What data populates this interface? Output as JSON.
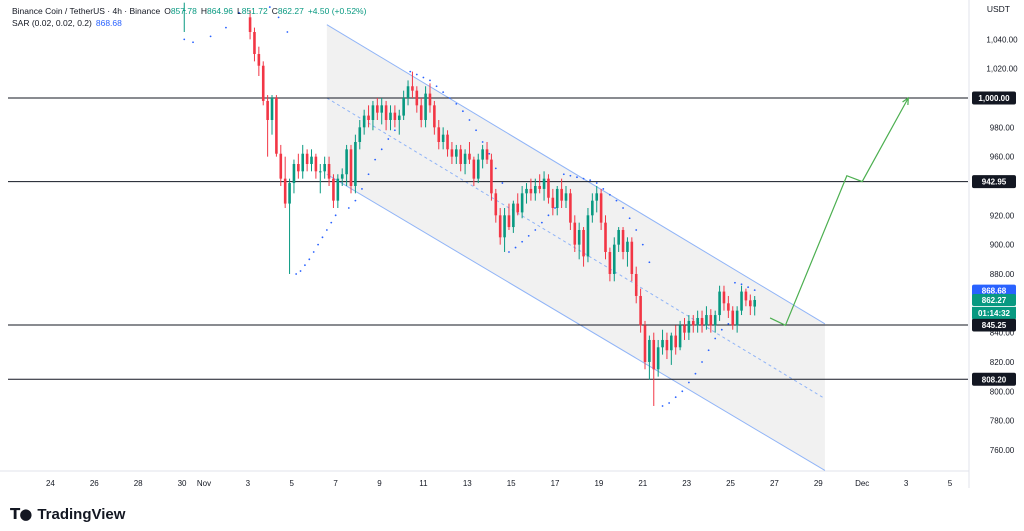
{
  "legend": {
    "symbol": "Binance Coin / TetherUS · 4h · Binance",
    "o_label": "O",
    "o_value": "857.78",
    "h_label": "H",
    "h_value": "864.96",
    "l_label": "L",
    "l_value": "851.72",
    "c_label": "C",
    "c_value": "862.27",
    "change": "+4.50 (+0.52%)",
    "sar_label": "SAR (0.02, 0.02, 0.2)",
    "sar_value": "868.68"
  },
  "currency": "USDT",
  "brand": "TradingView",
  "colors": {
    "up": "#089981",
    "down": "#f23645",
    "sar": "#2962ff",
    "channel_line": "#90b4f7",
    "channel_fill": "#f0f0f0",
    "projection": "#4caf50",
    "hline": "#131722"
  },
  "chart_data": {
    "type": "candlestick",
    "y_ticks": [
      "1,040.00",
      "1,020.00",
      "980.00",
      "960.00",
      "920.00",
      "900.00",
      "880.00",
      "840.00",
      "820.00",
      "800.00",
      "780.00",
      "760.00"
    ],
    "y_tick_values": [
      1040,
      1020,
      980,
      960,
      920,
      900,
      880,
      840,
      820,
      800,
      780,
      760
    ],
    "x_ticks": [
      "24",
      "26",
      "28",
      "30",
      "Nov",
      "3",
      "5",
      "7",
      "9",
      "11",
      "13",
      "15",
      "17",
      "19",
      "21",
      "23",
      "25",
      "27",
      "29",
      "Dec",
      "3",
      "5"
    ],
    "x_tick_days": [
      -7,
      -5,
      -3,
      -1,
      0,
      2,
      4,
      6,
      8,
      10,
      12,
      14,
      16,
      18,
      20,
      22,
      24,
      26,
      28,
      30,
      32,
      34
    ],
    "ylim": [
      745,
      1060
    ],
    "horizontal_levels": [
      {
        "label": "1,000.00",
        "value": 1000
      },
      {
        "label": "942.95",
        "value": 942.95
      },
      {
        "label": "845.25",
        "value": 845.25
      },
      {
        "label": "808.20",
        "value": 808.2
      }
    ],
    "price_badges": [
      {
        "label": "868.68",
        "value": 868.68,
        "kind": "sar"
      },
      {
        "label": "862.27",
        "value": 862.27,
        "kind": "last"
      },
      {
        "label": "01:14:32",
        "value": 853.5,
        "kind": "countdown"
      }
    ],
    "channel": {
      "upper": [
        [
          5.6,
          1050
        ],
        [
          28.3,
          846
        ]
      ],
      "middle": [
        [
          5.6,
          1000
        ],
        [
          28.3,
          795
        ]
      ],
      "lower": [
        [
          5.6,
          948
        ],
        [
          28.3,
          746
        ]
      ]
    },
    "projection": [
      [
        25.8,
        850
      ],
      [
        26.5,
        845
      ],
      [
        29.3,
        947
      ],
      [
        30.0,
        943
      ],
      [
        32.1,
        1000
      ]
    ],
    "candles": [
      {
        "d": -0.9,
        "o": 1060,
        "h": 1065,
        "l": 1045,
        "c": 1060
      },
      {
        "d": 2.1,
        "o": 1055,
        "h": 1060,
        "l": 1040,
        "c": 1045
      },
      {
        "d": 2.3,
        "o": 1045,
        "h": 1048,
        "l": 1025,
        "c": 1030
      },
      {
        "d": 2.5,
        "o": 1030,
        "h": 1035,
        "l": 1015,
        "c": 1022
      },
      {
        "d": 2.7,
        "o": 1022,
        "h": 1025,
        "l": 995,
        "c": 998
      },
      {
        "d": 2.9,
        "o": 998,
        "h": 1002,
        "l": 960,
        "c": 985
      },
      {
        "d": 3.1,
        "o": 985,
        "h": 1002,
        "l": 975,
        "c": 1000
      },
      {
        "d": 3.3,
        "o": 1000,
        "h": 1002,
        "l": 960,
        "c": 962
      },
      {
        "d": 3.5,
        "o": 962,
        "h": 968,
        "l": 940,
        "c": 945
      },
      {
        "d": 3.7,
        "o": 945,
        "h": 960,
        "l": 925,
        "c": 928
      },
      {
        "d": 3.9,
        "o": 928,
        "h": 945,
        "l": 880,
        "c": 942
      },
      {
        "d": 4.1,
        "o": 942,
        "h": 958,
        "l": 935,
        "c": 955
      },
      {
        "d": 4.3,
        "o": 955,
        "h": 962,
        "l": 945,
        "c": 950
      },
      {
        "d": 4.5,
        "o": 950,
        "h": 968,
        "l": 945,
        "c": 962
      },
      {
        "d": 4.7,
        "o": 962,
        "h": 965,
        "l": 950,
        "c": 955
      },
      {
        "d": 4.9,
        "o": 955,
        "h": 965,
        "l": 950,
        "c": 960
      },
      {
        "d": 5.1,
        "o": 960,
        "h": 962,
        "l": 945,
        "c": 950
      },
      {
        "d": 5.3,
        "o": 950,
        "h": 955,
        "l": 935,
        "c": 950
      },
      {
        "d": 5.5,
        "o": 950,
        "h": 960,
        "l": 945,
        "c": 955
      },
      {
        "d": 5.7,
        "o": 955,
        "h": 960,
        "l": 940,
        "c": 945
      },
      {
        "d": 5.9,
        "o": 945,
        "h": 948,
        "l": 925,
        "c": 930
      },
      {
        "d": 6.1,
        "o": 930,
        "h": 948,
        "l": 925,
        "c": 945
      },
      {
        "d": 6.3,
        "o": 945,
        "h": 952,
        "l": 940,
        "c": 948
      },
      {
        "d": 6.5,
        "o": 948,
        "h": 968,
        "l": 940,
        "c": 965
      },
      {
        "d": 6.7,
        "o": 965,
        "h": 968,
        "l": 935,
        "c": 940
      },
      {
        "d": 6.9,
        "o": 940,
        "h": 975,
        "l": 935,
        "c": 970
      },
      {
        "d": 7.1,
        "o": 970,
        "h": 985,
        "l": 965,
        "c": 980
      },
      {
        "d": 7.3,
        "o": 980,
        "h": 992,
        "l": 975,
        "c": 988
      },
      {
        "d": 7.5,
        "o": 988,
        "h": 995,
        "l": 980,
        "c": 985
      },
      {
        "d": 7.7,
        "o": 985,
        "h": 998,
        "l": 978,
        "c": 995
      },
      {
        "d": 7.9,
        "o": 995,
        "h": 1000,
        "l": 985,
        "c": 990
      },
      {
        "d": 8.1,
        "o": 990,
        "h": 1000,
        "l": 982,
        "c": 995
      },
      {
        "d": 8.3,
        "o": 995,
        "h": 998,
        "l": 978,
        "c": 985
      },
      {
        "d": 8.5,
        "o": 985,
        "h": 995,
        "l": 978,
        "c": 990
      },
      {
        "d": 8.7,
        "o": 990,
        "h": 995,
        "l": 980,
        "c": 985
      },
      {
        "d": 8.9,
        "o": 985,
        "h": 992,
        "l": 975,
        "c": 988
      },
      {
        "d": 9.1,
        "o": 988,
        "h": 1005,
        "l": 985,
        "c": 1000
      },
      {
        "d": 9.3,
        "o": 1000,
        "h": 1012,
        "l": 995,
        "c": 1008
      },
      {
        "d": 9.5,
        "o": 1008,
        "h": 1018,
        "l": 1000,
        "c": 1005
      },
      {
        "d": 9.7,
        "o": 1005,
        "h": 1008,
        "l": 990,
        "c": 995
      },
      {
        "d": 9.9,
        "o": 995,
        "h": 1000,
        "l": 980,
        "c": 985
      },
      {
        "d": 10.1,
        "o": 985,
        "h": 1008,
        "l": 980,
        "c": 1003
      },
      {
        "d": 10.3,
        "o": 1003,
        "h": 1010,
        "l": 990,
        "c": 995
      },
      {
        "d": 10.5,
        "o": 995,
        "h": 998,
        "l": 975,
        "c": 980
      },
      {
        "d": 10.7,
        "o": 980,
        "h": 985,
        "l": 965,
        "c": 970
      },
      {
        "d": 10.9,
        "o": 970,
        "h": 980,
        "l": 965,
        "c": 975
      },
      {
        "d": 11.1,
        "o": 975,
        "h": 978,
        "l": 960,
        "c": 965
      },
      {
        "d": 11.3,
        "o": 965,
        "h": 970,
        "l": 955,
        "c": 960
      },
      {
        "d": 11.5,
        "o": 960,
        "h": 968,
        "l": 955,
        "c": 965
      },
      {
        "d": 11.7,
        "o": 965,
        "h": 968,
        "l": 950,
        "c": 955
      },
      {
        "d": 11.9,
        "o": 955,
        "h": 965,
        "l": 948,
        "c": 962
      },
      {
        "d": 12.1,
        "o": 962,
        "h": 970,
        "l": 955,
        "c": 958
      },
      {
        "d": 12.3,
        "o": 958,
        "h": 960,
        "l": 940,
        "c": 945
      },
      {
        "d": 12.5,
        "o": 945,
        "h": 962,
        "l": 942,
        "c": 958
      },
      {
        "d": 12.7,
        "o": 958,
        "h": 968,
        "l": 952,
        "c": 965
      },
      {
        "d": 12.9,
        "o": 965,
        "h": 970,
        "l": 955,
        "c": 958
      },
      {
        "d": 13.1,
        "o": 958,
        "h": 962,
        "l": 930,
        "c": 935
      },
      {
        "d": 13.3,
        "o": 935,
        "h": 938,
        "l": 915,
        "c": 920
      },
      {
        "d": 13.5,
        "o": 920,
        "h": 925,
        "l": 900,
        "c": 905
      },
      {
        "d": 13.7,
        "o": 905,
        "h": 925,
        "l": 895,
        "c": 920
      },
      {
        "d": 13.9,
        "o": 920,
        "h": 928,
        "l": 910,
        "c": 912
      },
      {
        "d": 14.1,
        "o": 912,
        "h": 930,
        "l": 908,
        "c": 928
      },
      {
        "d": 14.3,
        "o": 928,
        "h": 935,
        "l": 920,
        "c": 922
      },
      {
        "d": 14.5,
        "o": 922,
        "h": 940,
        "l": 918,
        "c": 935
      },
      {
        "d": 14.7,
        "o": 935,
        "h": 942,
        "l": 928,
        "c": 938
      },
      {
        "d": 14.9,
        "o": 938,
        "h": 945,
        "l": 930,
        "c": 935
      },
      {
        "d": 15.1,
        "o": 935,
        "h": 945,
        "l": 930,
        "c": 940
      },
      {
        "d": 15.3,
        "o": 940,
        "h": 948,
        "l": 935,
        "c": 938
      },
      {
        "d": 15.5,
        "o": 938,
        "h": 950,
        "l": 930,
        "c": 945
      },
      {
        "d": 15.7,
        "o": 945,
        "h": 948,
        "l": 928,
        "c": 932
      },
      {
        "d": 15.9,
        "o": 932,
        "h": 938,
        "l": 920,
        "c": 925
      },
      {
        "d": 16.1,
        "o": 925,
        "h": 940,
        "l": 920,
        "c": 938
      },
      {
        "d": 16.3,
        "o": 938,
        "h": 945,
        "l": 925,
        "c": 930
      },
      {
        "d": 16.5,
        "o": 930,
        "h": 940,
        "l": 925,
        "c": 935
      },
      {
        "d": 16.7,
        "o": 935,
        "h": 938,
        "l": 910,
        "c": 915
      },
      {
        "d": 16.9,
        "o": 915,
        "h": 920,
        "l": 895,
        "c": 900
      },
      {
        "d": 17.1,
        "o": 900,
        "h": 915,
        "l": 890,
        "c": 910
      },
      {
        "d": 17.3,
        "o": 910,
        "h": 912,
        "l": 885,
        "c": 892
      },
      {
        "d": 17.5,
        "o": 892,
        "h": 925,
        "l": 888,
        "c": 920
      },
      {
        "d": 17.7,
        "o": 920,
        "h": 935,
        "l": 915,
        "c": 930
      },
      {
        "d": 17.9,
        "o": 930,
        "h": 940,
        "l": 922,
        "c": 935
      },
      {
        "d": 18.1,
        "o": 935,
        "h": 938,
        "l": 910,
        "c": 915
      },
      {
        "d": 18.3,
        "o": 915,
        "h": 920,
        "l": 890,
        "c": 895
      },
      {
        "d": 18.5,
        "o": 895,
        "h": 898,
        "l": 875,
        "c": 880
      },
      {
        "d": 18.7,
        "o": 880,
        "h": 905,
        "l": 875,
        "c": 900
      },
      {
        "d": 18.9,
        "o": 900,
        "h": 912,
        "l": 895,
        "c": 910
      },
      {
        "d": 19.1,
        "o": 910,
        "h": 912,
        "l": 890,
        "c": 895
      },
      {
        "d": 19.3,
        "o": 895,
        "h": 905,
        "l": 885,
        "c": 902
      },
      {
        "d": 19.5,
        "o": 902,
        "h": 905,
        "l": 875,
        "c": 880
      },
      {
        "d": 19.7,
        "o": 880,
        "h": 885,
        "l": 860,
        "c": 865
      },
      {
        "d": 19.9,
        "o": 865,
        "h": 870,
        "l": 840,
        "c": 845
      },
      {
        "d": 20.1,
        "o": 845,
        "h": 848,
        "l": 815,
        "c": 820
      },
      {
        "d": 20.3,
        "o": 820,
        "h": 838,
        "l": 808,
        "c": 835
      },
      {
        "d": 20.5,
        "o": 835,
        "h": 840,
        "l": 790,
        "c": 815
      },
      {
        "d": 20.7,
        "o": 815,
        "h": 835,
        "l": 810,
        "c": 830
      },
      {
        "d": 20.9,
        "o": 830,
        "h": 842,
        "l": 825,
        "c": 835
      },
      {
        "d": 21.1,
        "o": 835,
        "h": 840,
        "l": 822,
        "c": 828
      },
      {
        "d": 21.3,
        "o": 828,
        "h": 840,
        "l": 818,
        "c": 838
      },
      {
        "d": 21.5,
        "o": 838,
        "h": 845,
        "l": 825,
        "c": 830
      },
      {
        "d": 21.7,
        "o": 830,
        "h": 848,
        "l": 828,
        "c": 845
      },
      {
        "d": 21.9,
        "o": 845,
        "h": 850,
        "l": 835,
        "c": 840
      },
      {
        "d": 22.1,
        "o": 840,
        "h": 852,
        "l": 835,
        "c": 848
      },
      {
        "d": 22.3,
        "o": 848,
        "h": 852,
        "l": 840,
        "c": 845
      },
      {
        "d": 22.5,
        "o": 845,
        "h": 855,
        "l": 840,
        "c": 850
      },
      {
        "d": 22.7,
        "o": 850,
        "h": 855,
        "l": 840,
        "c": 845
      },
      {
        "d": 22.9,
        "o": 845,
        "h": 858,
        "l": 842,
        "c": 852
      },
      {
        "d": 23.1,
        "o": 852,
        "h": 856,
        "l": 840,
        "c": 845
      },
      {
        "d": 23.3,
        "o": 845,
        "h": 855,
        "l": 840,
        "c": 852
      },
      {
        "d": 23.5,
        "o": 852,
        "h": 872,
        "l": 848,
        "c": 868
      },
      {
        "d": 23.7,
        "o": 868,
        "h": 872,
        "l": 855,
        "c": 860
      },
      {
        "d": 23.9,
        "o": 860,
        "h": 865,
        "l": 850,
        "c": 855
      },
      {
        "d": 24.1,
        "o": 855,
        "h": 858,
        "l": 842,
        "c": 845
      },
      {
        "d": 24.3,
        "o": 845,
        "h": 858,
        "l": 840,
        "c": 855
      },
      {
        "d": 24.5,
        "o": 855,
        "h": 872,
        "l": 852,
        "c": 868
      },
      {
        "d": 24.7,
        "o": 868,
        "h": 870,
        "l": 858,
        "c": 862
      },
      {
        "d": 24.9,
        "o": 862,
        "h": 866,
        "l": 852,
        "c": 858
      },
      {
        "d": 25.1,
        "o": 857.78,
        "h": 864.96,
        "l": 851.72,
        "c": 862.27
      }
    ],
    "sar": [
      {
        "d": -0.9,
        "v": 1040
      },
      {
        "d": -0.5,
        "v": 1038
      },
      {
        "d": 0.3,
        "v": 1042
      },
      {
        "d": 1.0,
        "v": 1048
      },
      {
        "d": 1.6,
        "v": 1058
      },
      {
        "d": 2.2,
        "v": 1070
      },
      {
        "d": 2.6,
        "v": 1068
      },
      {
        "d": 3.0,
        "v": 1062
      },
      {
        "d": 3.4,
        "v": 1055
      },
      {
        "d": 3.8,
        "v": 1045
      },
      {
        "d": 4.2,
        "v": 880
      },
      {
        "d": 4.4,
        "v": 882
      },
      {
        "d": 4.6,
        "v": 886
      },
      {
        "d": 4.8,
        "v": 890
      },
      {
        "d": 5.0,
        "v": 895
      },
      {
        "d": 5.2,
        "v": 900
      },
      {
        "d": 5.4,
        "v": 905
      },
      {
        "d": 5.6,
        "v": 910
      },
      {
        "d": 5.8,
        "v": 915
      },
      {
        "d": 6.0,
        "v": 920
      },
      {
        "d": 6.6,
        "v": 925
      },
      {
        "d": 6.9,
        "v": 930
      },
      {
        "d": 7.2,
        "v": 938
      },
      {
        "d": 7.5,
        "v": 948
      },
      {
        "d": 7.8,
        "v": 958
      },
      {
        "d": 8.1,
        "v": 965
      },
      {
        "d": 8.4,
        "v": 972
      },
      {
        "d": 8.7,
        "v": 978
      },
      {
        "d": 9.4,
        "v": 1018
      },
      {
        "d": 9.7,
        "v": 1016
      },
      {
        "d": 10.0,
        "v": 1014
      },
      {
        "d": 10.3,
        "v": 1012
      },
      {
        "d": 10.6,
        "v": 1008
      },
      {
        "d": 10.9,
        "v": 1004
      },
      {
        "d": 11.2,
        "v": 1000
      },
      {
        "d": 11.5,
        "v": 996
      },
      {
        "d": 11.8,
        "v": 991
      },
      {
        "d": 12.1,
        "v": 985
      },
      {
        "d": 12.4,
        "v": 978
      },
      {
        "d": 12.7,
        "v": 970
      },
      {
        "d": 13.0,
        "v": 962
      },
      {
        "d": 13.3,
        "v": 952
      },
      {
        "d": 13.6,
        "v": 942
      },
      {
        "d": 13.9,
        "v": 895
      },
      {
        "d": 14.2,
        "v": 898
      },
      {
        "d": 14.5,
        "v": 902
      },
      {
        "d": 14.8,
        "v": 906
      },
      {
        "d": 15.1,
        "v": 910
      },
      {
        "d": 15.4,
        "v": 915
      },
      {
        "d": 15.7,
        "v": 920
      },
      {
        "d": 16.0,
        "v": 925
      },
      {
        "d": 16.4,
        "v": 948
      },
      {
        "d": 16.7,
        "v": 947
      },
      {
        "d": 17.0,
        "v": 946
      },
      {
        "d": 17.3,
        "v": 945
      },
      {
        "d": 17.6,
        "v": 944
      },
      {
        "d": 17.9,
        "v": 942
      },
      {
        "d": 18.2,
        "v": 938
      },
      {
        "d": 18.5,
        "v": 934
      },
      {
        "d": 18.8,
        "v": 930
      },
      {
        "d": 19.1,
        "v": 925
      },
      {
        "d": 19.4,
        "v": 918
      },
      {
        "d": 19.7,
        "v": 910
      },
      {
        "d": 20.0,
        "v": 900
      },
      {
        "d": 20.3,
        "v": 888
      },
      {
        "d": 20.9,
        "v": 790
      },
      {
        "d": 21.2,
        "v": 792
      },
      {
        "d": 21.5,
        "v": 796
      },
      {
        "d": 21.8,
        "v": 800
      },
      {
        "d": 22.1,
        "v": 806
      },
      {
        "d": 22.4,
        "v": 812
      },
      {
        "d": 22.7,
        "v": 820
      },
      {
        "d": 23.0,
        "v": 828
      },
      {
        "d": 23.3,
        "v": 836
      },
      {
        "d": 23.6,
        "v": 842
      },
      {
        "d": 23.9,
        "v": 846
      },
      {
        "d": 24.2,
        "v": 874
      },
      {
        "d": 24.5,
        "v": 873
      },
      {
        "d": 24.8,
        "v": 871
      },
      {
        "d": 25.1,
        "v": 869
      }
    ]
  }
}
